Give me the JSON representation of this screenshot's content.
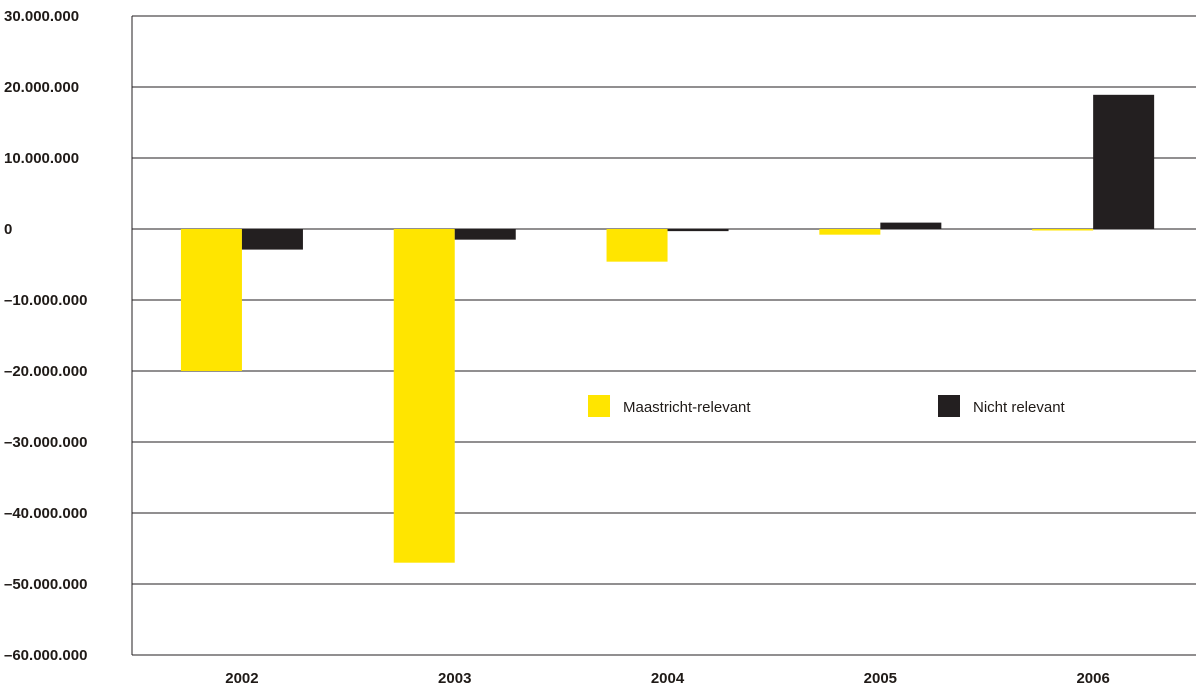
{
  "chart_data": {
    "type": "bar",
    "categories": [
      "2002",
      "2003",
      "2004",
      "2005",
      "2006"
    ],
    "series": [
      {
        "name": "Maastricht-relevant",
        "color": "#ffe500",
        "values": [
          -20000000,
          -47000000,
          -4600000,
          -800000,
          -200000
        ]
      },
      {
        "name": "Nicht relevant",
        "color": "#231f20",
        "values": [
          -2900000,
          -1500000,
          -300000,
          900000,
          18900000
        ]
      }
    ],
    "ylim": [
      -60000000,
      30000000
    ],
    "yticks": [
      30000000,
      20000000,
      10000000,
      0,
      -10000000,
      -20000000,
      -30000000,
      -40000000,
      -50000000,
      -60000000
    ],
    "ytick_labels": [
      "30.000.000",
      "20.000.000",
      "10.000.000",
      "0",
      "–10.000.000",
      "–20.000.000",
      "–30.000.000",
      "–40.000.000",
      "–50.000.000",
      "–60.000.000"
    ],
    "grid": true,
    "legend_position": "center-right",
    "title": "",
    "xlabel": "",
    "ylabel": ""
  }
}
